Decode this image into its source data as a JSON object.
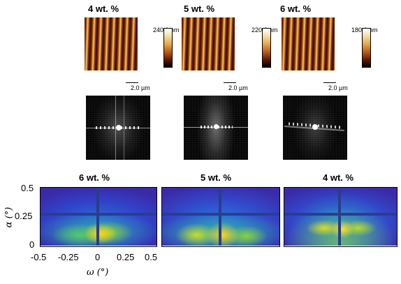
{
  "afm_panels": [
    {
      "title": "4 wt. %",
      "scale": "2.0 µm",
      "colorbar_max": "240.0 nm"
    },
    {
      "title": "5 wt. %",
      "scale": "2.0 µm",
      "colorbar_max": "220.0 nm"
    },
    {
      "title": "6 wt. %",
      "scale": "2.0 µm",
      "colorbar_max": "180.0 nm"
    }
  ],
  "giwaxs_panels": [
    {
      "title": "6 wt. %"
    },
    {
      "title": "5 wt. %"
    },
    {
      "title": "4 wt. %"
    }
  ],
  "axes": {
    "y_label": "α (°)",
    "x_label": "ω (°)",
    "y_ticks": [
      "0.5",
      "0.25",
      "0"
    ],
    "x_ticks": [
      "-0.5",
      "-0.25",
      "0",
      "0.25",
      "0.5"
    ]
  }
}
